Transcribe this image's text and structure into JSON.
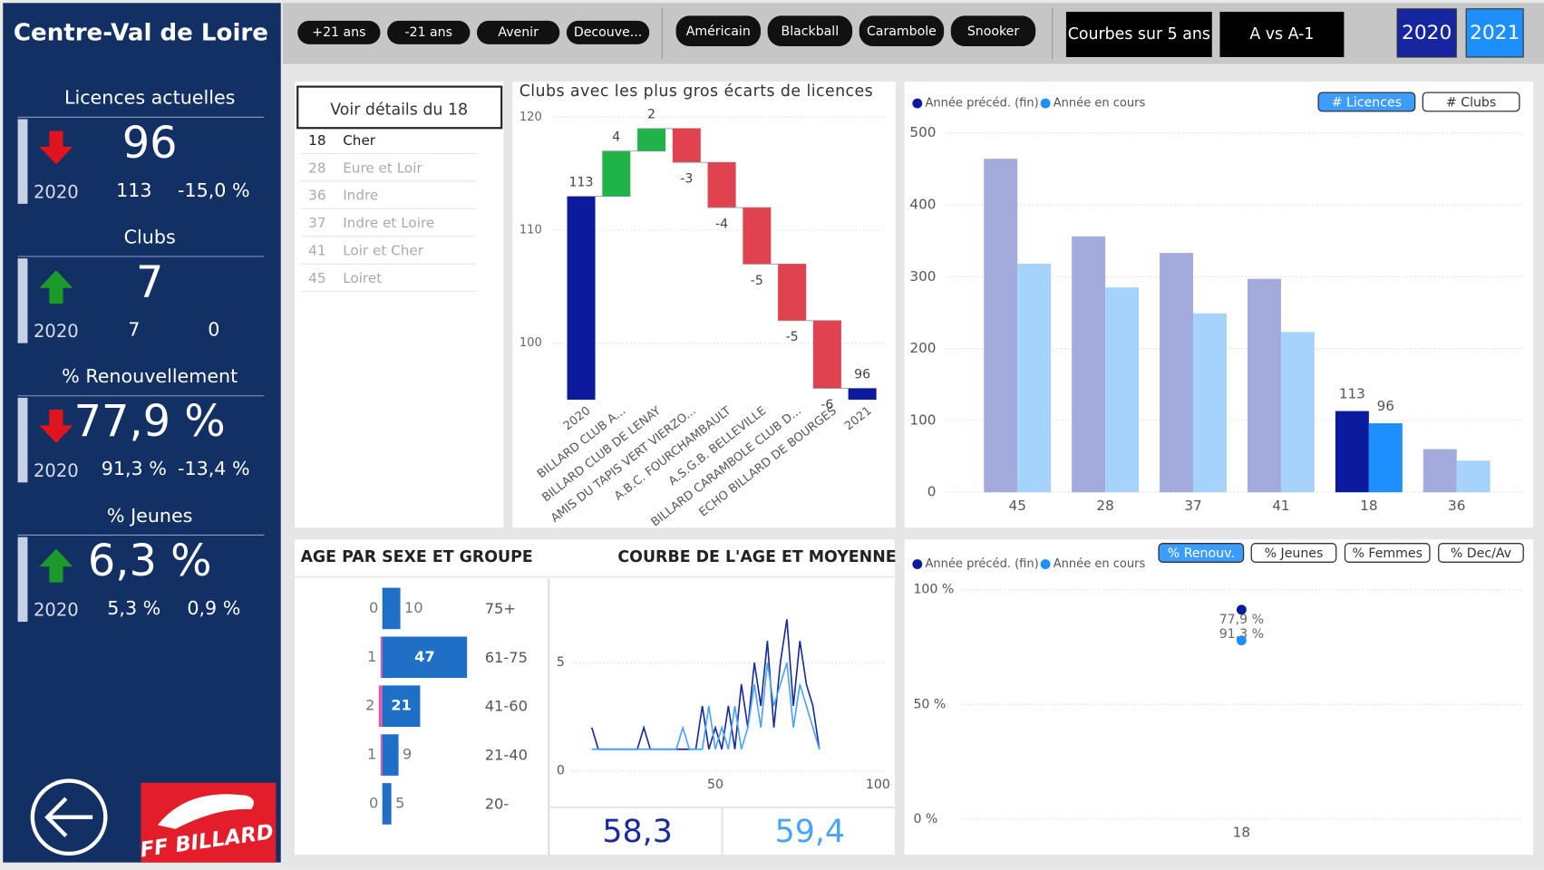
{
  "sidebar": {
    "title": "Centre-Val de Loire",
    "kpis": [
      {
        "label": "Licences actuelles",
        "value": "96",
        "trend": "down",
        "year": "2020",
        "previous": "113",
        "change": "-15,0 %"
      },
      {
        "label": "Clubs",
        "value": "7",
        "trend": "up",
        "year": "2020",
        "previous": "7",
        "change": "0"
      },
      {
        "label": "% Renouvellement",
        "value": "77,9 %",
        "trend": "down",
        "year": "2020",
        "previous": "91,3 %",
        "change": "-13,4 %"
      },
      {
        "label": "% Jeunes",
        "value": "6,3 %",
        "trend": "up",
        "year": "2020",
        "previous": "5,3 %",
        "change": "0,9 %"
      }
    ],
    "logo": "FF BILLARD"
  },
  "toolbar": {
    "age_groups": [
      "+21 ans",
      "-21 ans",
      "Avenir",
      "Decouve..."
    ],
    "modes": [
      "Américain",
      "Blackball",
      "Carambole",
      "Snooker"
    ],
    "views": [
      "Courbes sur 5 ans",
      "A vs A-1"
    ],
    "years": [
      "2020",
      "2021"
    ],
    "year_colors": [
      "#1526a0",
      "#1e8fff"
    ]
  },
  "departments": {
    "header": "Voir détails du 18",
    "selected": "18",
    "items": [
      {
        "code": "18",
        "name": "Cher"
      },
      {
        "code": "28",
        "name": "Eure et Loir"
      },
      {
        "code": "36",
        "name": "Indre"
      },
      {
        "code": "37",
        "name": "Indre et Loire"
      },
      {
        "code": "41",
        "name": "Loir et Cher"
      },
      {
        "code": "45",
        "name": "Loiret"
      }
    ]
  },
  "chart_data": [
    {
      "type": "waterfall",
      "title": "Clubs avec les plus gros écarts de licences",
      "categories": [
        "2020",
        "BILLARD CLUB A...",
        "BILLARD CLUB DE LENAY",
        "AMIS DU TAPIS VERT VIERZO...",
        "A.B.C. FOURCHAMBAULT",
        "A.S.G.B. BELLEVILLE",
        "BILLARD CARAMBOLE CLUB D...",
        "ECHO BILLARD DE BOURGES",
        "2021"
      ],
      "values": [
        113,
        4,
        2,
        -3,
        -4,
        -5,
        -5,
        -6,
        96
      ],
      "measure": [
        "total",
        "relative",
        "relative",
        "relative",
        "relative",
        "relative",
        "relative",
        "relative",
        "total"
      ],
      "colors": {
        "total": "#0c1a9e",
        "increase": "#1fb34a",
        "decrease": "#e0434f"
      },
      "ylim": [
        95,
        120
      ],
      "yticks": [
        100,
        110,
        120
      ],
      "grid": true
    },
    {
      "type": "bar",
      "categories": [
        "45",
        "28",
        "37",
        "41",
        "18",
        "36"
      ],
      "series": [
        {
          "name": "Année précéd. (fin)",
          "color": "#0c1a9e",
          "faded_color": "#a3abdc",
          "values": [
            464,
            356,
            333,
            297,
            113,
            60
          ]
        },
        {
          "name": "Année en cours",
          "color": "#1e8fff",
          "faded_color": "#a6d3fb",
          "values": [
            318,
            285,
            249,
            223,
            96,
            44
          ]
        }
      ],
      "highlight": "18",
      "toggles": [
        "# Licences",
        "# Clubs"
      ],
      "active_toggle": "# Licences",
      "ylim": [
        0,
        500
      ],
      "yticks": [
        0,
        100,
        200,
        300,
        400,
        500
      ],
      "grid": true,
      "legend": "top-left"
    },
    {
      "type": "pyramid",
      "title": "AGE PAR SEXE ET GROUPE",
      "categories": [
        "75+",
        "61-75",
        "41-60",
        "21-40",
        "20-"
      ],
      "series": [
        {
          "color": "#e35aa8",
          "values": [
            0,
            1,
            2,
            1,
            0
          ]
        },
        {
          "color": "#1f6fc7",
          "values": [
            10,
            47,
            21,
            9,
            5
          ]
        }
      ]
    },
    {
      "type": "line",
      "title": "COURBE DE L'AGE ET MOYENNE",
      "x": [
        12,
        14,
        16,
        18,
        20,
        22,
        24,
        26,
        28,
        30,
        32,
        34,
        36,
        38,
        40,
        42,
        44,
        46,
        48,
        50,
        52,
        54,
        56,
        58,
        60,
        62,
        64,
        66,
        68,
        70,
        72,
        74,
        76,
        78,
        80,
        82
      ],
      "series": [
        {
          "color": "#1a2a9c",
          "values": [
            2,
            1,
            1,
            1,
            1,
            1,
            1,
            1,
            2,
            1,
            1,
            1,
            1,
            1,
            1,
            1,
            1,
            3,
            1,
            2,
            1,
            3,
            1,
            4,
            2,
            5,
            3,
            6,
            2,
            5,
            7,
            3,
            6,
            4,
            3,
            1
          ]
        },
        {
          "color": "#4aa3ff",
          "values": [
            1,
            1,
            1,
            1,
            1,
            1,
            1,
            1,
            1,
            1,
            1,
            1,
            1,
            1,
            2,
            1,
            1,
            1,
            3,
            1,
            2,
            1,
            3,
            1,
            2,
            4,
            2,
            5,
            3,
            4,
            5,
            2,
            4,
            3,
            2,
            1
          ]
        }
      ],
      "means": [
        "58,3",
        "59,4"
      ],
      "xlim": [
        10,
        100
      ],
      "xticks": [
        50,
        100
      ],
      "ylim": [
        0,
        7
      ],
      "yticks": [
        0,
        5
      ],
      "grid": true
    },
    {
      "type": "point",
      "categories": [
        "18"
      ],
      "series": [
        {
          "name": "Année précéd. (fin)",
          "color": "#0c1a9e",
          "values": [
            91.3
          ],
          "value_labels": [
            "91,3 %"
          ]
        },
        {
          "name": "Année en cours",
          "color": "#1e8fff",
          "values": [
            77.9
          ],
          "value_labels": [
            "77,9 %"
          ]
        }
      ],
      "toggles": [
        "% Renouv.",
        "% Jeunes",
        "% Femmes",
        "% Dec/Av"
      ],
      "active_toggle": "% Renouv.",
      "ylim": [
        0,
        100
      ],
      "yticks": [
        {
          "value": 0,
          "label": "0 %"
        },
        {
          "value": 50,
          "label": "50 %"
        },
        {
          "value": 100,
          "label": "100 %"
        }
      ],
      "grid": true,
      "legend": "top-left"
    }
  ]
}
